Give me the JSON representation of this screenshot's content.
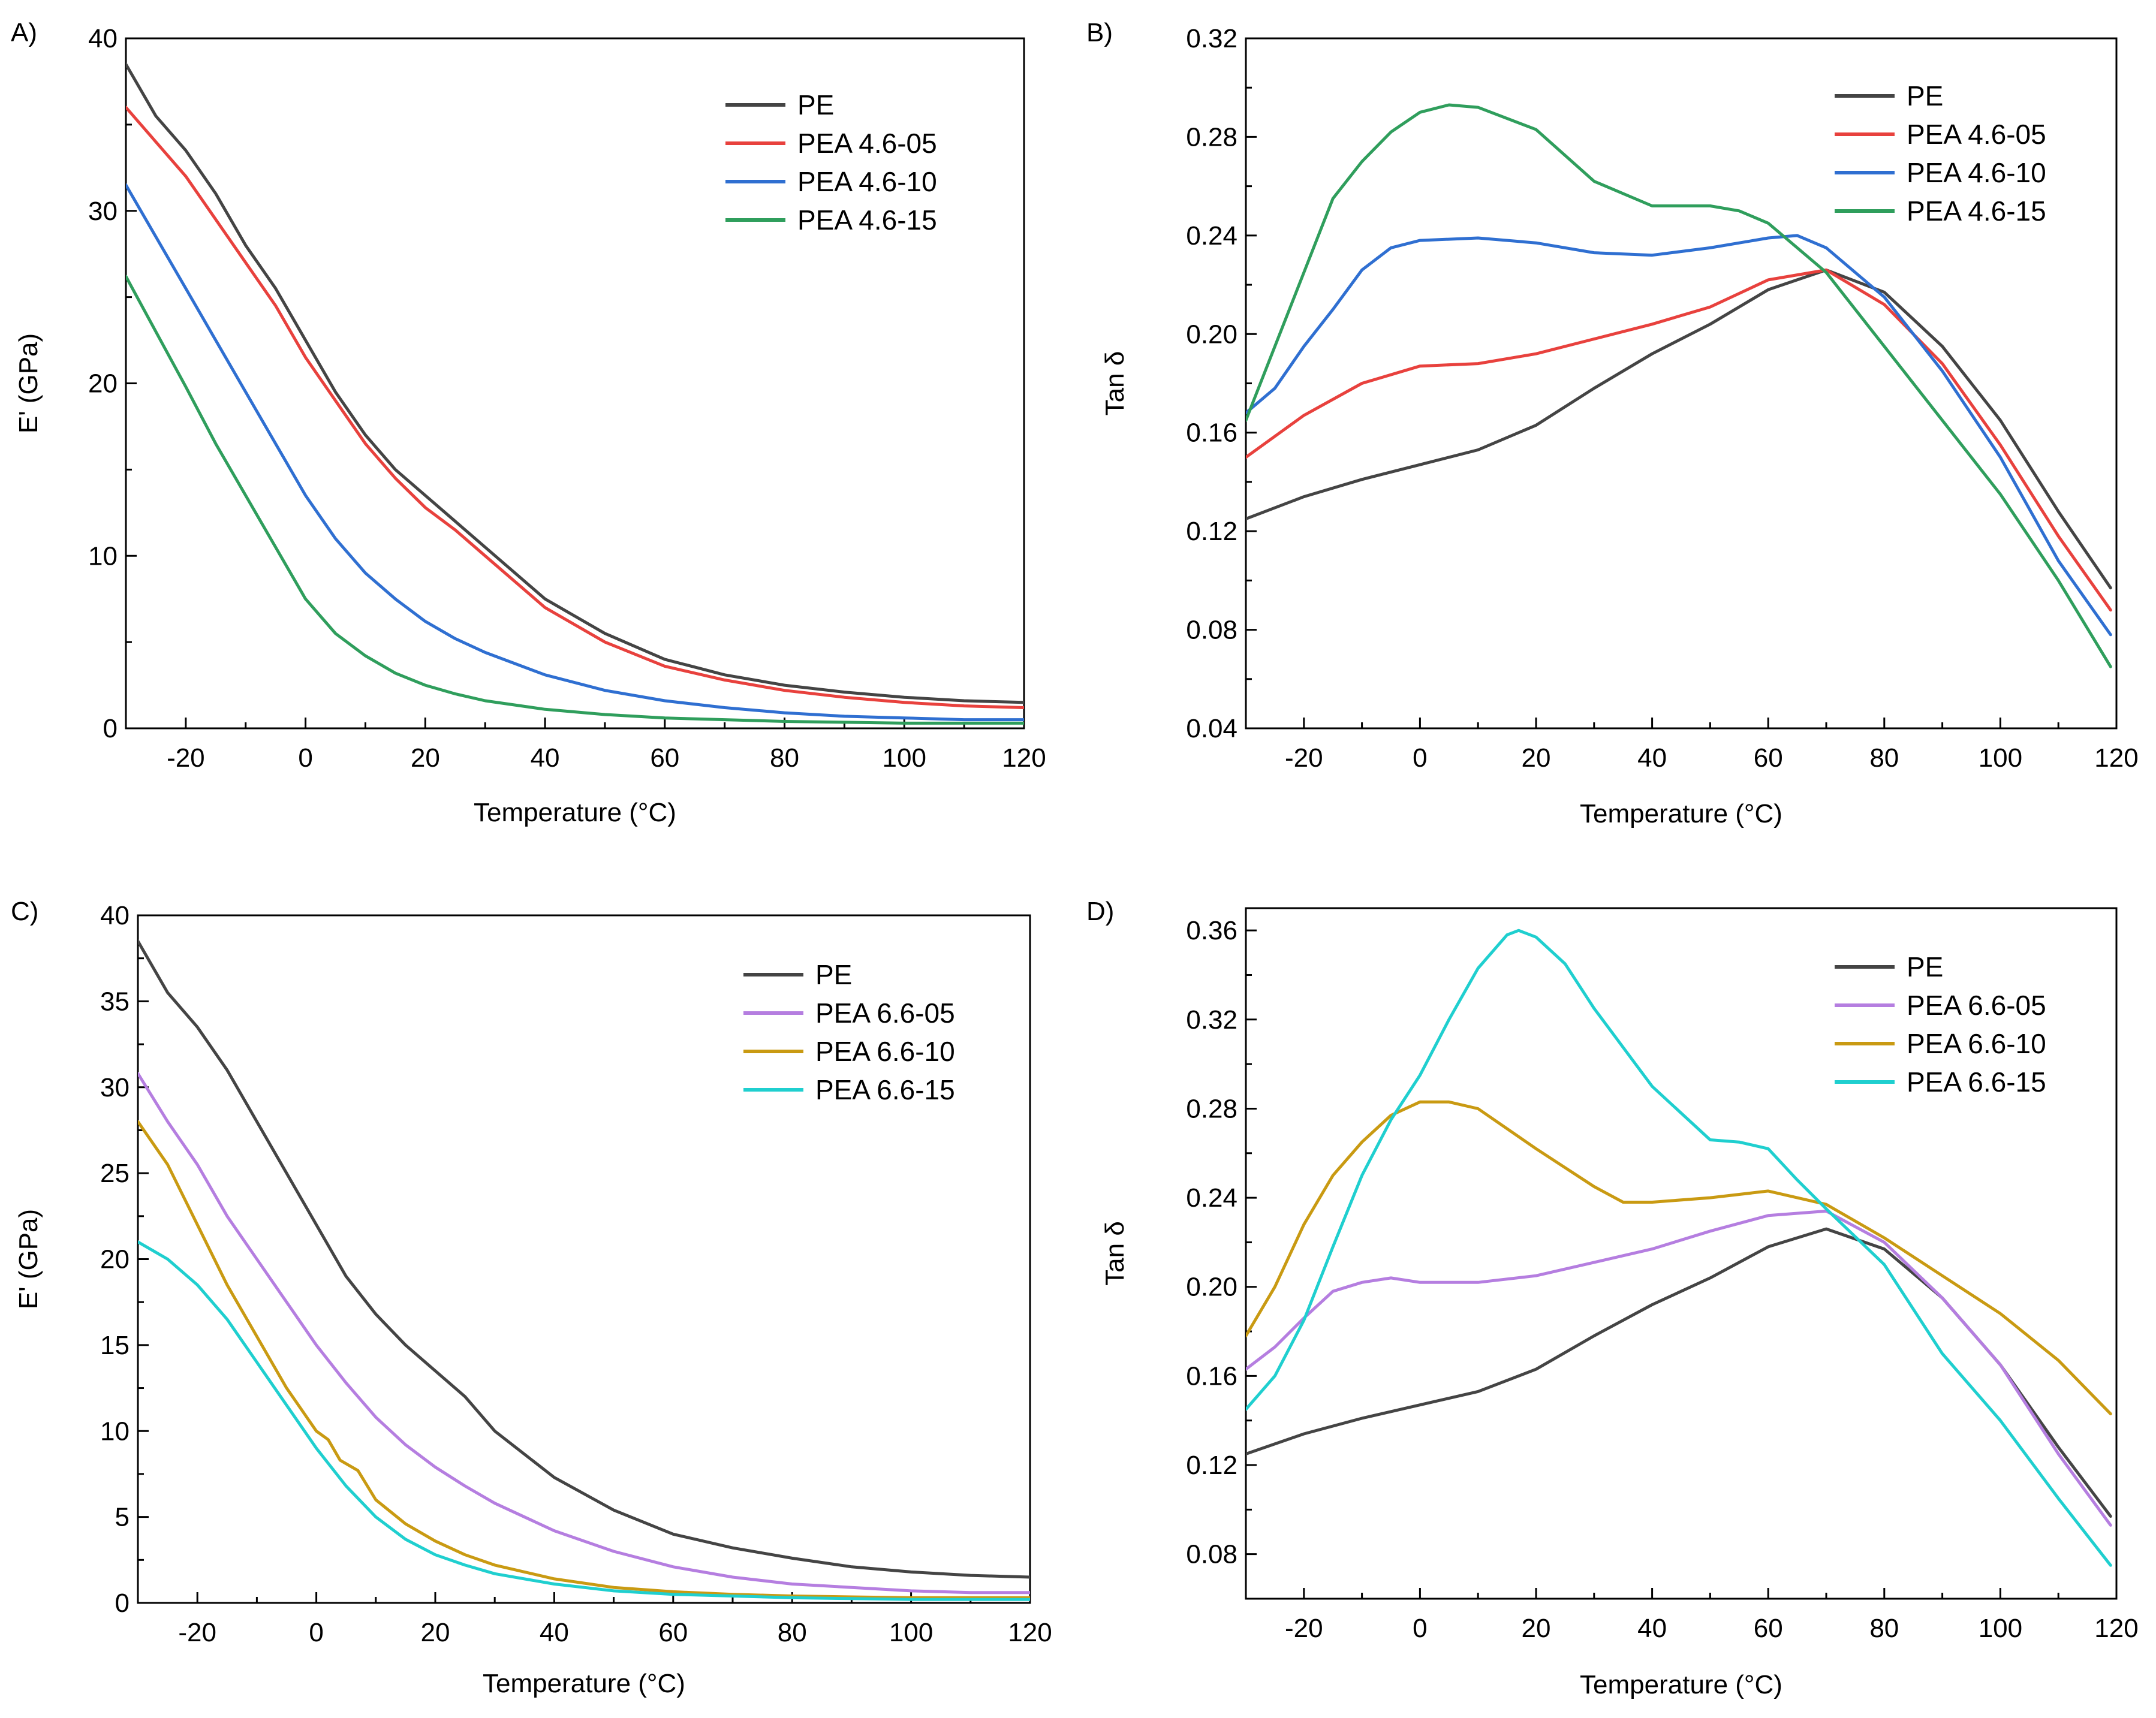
{
  "figure": {
    "panels": [
      "A)",
      "B)",
      "C)",
      "D)"
    ]
  },
  "colors": {
    "PE": "#444444",
    "PEA 4.6-05": "#e8413d",
    "PEA 4.6-10": "#2f6fd1",
    "PEA 4.6-15": "#2f9e5c",
    "PEA 6.6-05": "#b57ee0",
    "PEA 6.6-10": "#c99a12",
    "PEA 6.6-15": "#1fcfcf"
  },
  "chart_data": [
    {
      "panel": "A)",
      "type": "line",
      "xlabel": "Temperature (°C)",
      "ylabel": "E' (GPa)",
      "xlim": [
        -30,
        120
      ],
      "ylim": [
        0,
        40
      ],
      "xticks": [
        -20,
        0,
        20,
        40,
        60,
        80,
        100,
        120
      ],
      "xtick_labels": [
        "-20",
        "0",
        "20",
        "40",
        "60",
        "80",
        "100",
        "120"
      ],
      "yticks": [
        0,
        10,
        20,
        30,
        40
      ],
      "ytick_labels": [
        "0",
        "10",
        "20",
        "30",
        "40"
      ],
      "legend_position": "top-right",
      "series": [
        {
          "name": "PE",
          "x": [
            -30,
            -25,
            -20,
            -15,
            -10,
            -5,
            0,
            5,
            10,
            15,
            20,
            25,
            30,
            40,
            50,
            60,
            70,
            80,
            90,
            100,
            110,
            120
          ],
          "values": [
            38.5,
            35.5,
            33.5,
            31,
            28,
            25.5,
            22.5,
            19.5,
            17,
            15,
            13.5,
            12,
            10.5,
            7.5,
            5.5,
            4,
            3.1,
            2.5,
            2.1,
            1.8,
            1.6,
            1.5
          ]
        },
        {
          "name": "PEA 4.6-05",
          "x": [
            -30,
            -25,
            -20,
            -15,
            -10,
            -5,
            0,
            5,
            10,
            15,
            20,
            25,
            30,
            40,
            50,
            60,
            70,
            80,
            90,
            100,
            110,
            120
          ],
          "values": [
            36,
            34,
            32,
            29.5,
            27,
            24.5,
            21.5,
            19,
            16.5,
            14.5,
            12.8,
            11.5,
            10,
            7,
            5,
            3.6,
            2.8,
            2.2,
            1.8,
            1.5,
            1.3,
            1.2
          ]
        },
        {
          "name": "PEA 4.6-10",
          "x": [
            -30,
            -25,
            -20,
            -15,
            -10,
            -5,
            0,
            5,
            10,
            15,
            20,
            25,
            30,
            40,
            50,
            60,
            70,
            80,
            90,
            100,
            110,
            120
          ],
          "values": [
            31.5,
            28.5,
            25.5,
            22.5,
            19.5,
            16.5,
            13.5,
            11,
            9,
            7.5,
            6.2,
            5.2,
            4.4,
            3.1,
            2.2,
            1.6,
            1.2,
            0.9,
            0.7,
            0.6,
            0.5,
            0.5
          ]
        },
        {
          "name": "PEA 4.6-15",
          "x": [
            -30,
            -25,
            -20,
            -15,
            -10,
            -5,
            0,
            5,
            10,
            15,
            20,
            25,
            30,
            40,
            50,
            60,
            70,
            80,
            90,
            100,
            110,
            120
          ],
          "values": [
            26.2,
            23,
            19.8,
            16.5,
            13.5,
            10.5,
            7.5,
            5.5,
            4.2,
            3.2,
            2.5,
            2,
            1.6,
            1.1,
            0.8,
            0.6,
            0.5,
            0.4,
            0.35,
            0.3,
            0.3,
            0.3
          ]
        }
      ]
    },
    {
      "panel": "B)",
      "type": "line",
      "xlabel": "Temperature (°C)",
      "ylabel": "Tan δ",
      "xlim": [
        -30,
        120
      ],
      "ylim": [
        0.04,
        0.32
      ],
      "xticks": [
        -20,
        0,
        20,
        40,
        60,
        80,
        100,
        120
      ],
      "xtick_labels": [
        "-20",
        "0",
        "20",
        "40",
        "60",
        "80",
        "100",
        "120"
      ],
      "yticks": [
        0.04,
        0.08,
        0.12,
        0.16,
        0.2,
        0.24,
        0.28,
        0.32
      ],
      "ytick_labels": [
        "0.04",
        "0.08",
        "0.12",
        "0.16",
        "0.20",
        "0.24",
        "0.28",
        "0.32"
      ],
      "legend_position": "top-right",
      "series": [
        {
          "name": "PE",
          "x": [
            -30,
            -20,
            -10,
            0,
            10,
            20,
            30,
            40,
            50,
            60,
            70,
            80,
            90,
            100,
            110,
            119
          ],
          "values": [
            0.125,
            0.134,
            0.141,
            0.147,
            0.153,
            0.163,
            0.178,
            0.192,
            0.204,
            0.218,
            0.226,
            0.217,
            0.195,
            0.165,
            0.128,
            0.097
          ]
        },
        {
          "name": "PEA 4.6-05",
          "x": [
            -30,
            -20,
            -10,
            0,
            10,
            20,
            30,
            40,
            50,
            60,
            70,
            80,
            90,
            100,
            110,
            119
          ],
          "values": [
            0.15,
            0.167,
            0.18,
            0.187,
            0.188,
            0.192,
            0.198,
            0.204,
            0.211,
            0.222,
            0.226,
            0.212,
            0.188,
            0.155,
            0.118,
            0.088
          ]
        },
        {
          "name": "PEA 4.6-10",
          "x": [
            -30,
            -25,
            -20,
            -15,
            -10,
            -5,
            0,
            10,
            20,
            30,
            40,
            50,
            60,
            65,
            70,
            80,
            90,
            100,
            110,
            119
          ],
          "values": [
            0.168,
            0.178,
            0.195,
            0.21,
            0.226,
            0.235,
            0.238,
            0.239,
            0.237,
            0.233,
            0.232,
            0.235,
            0.239,
            0.24,
            0.235,
            0.215,
            0.185,
            0.15,
            0.108,
            0.078
          ]
        },
        {
          "name": "PEA 4.6-15",
          "x": [
            -30,
            -25,
            -20,
            -15,
            -10,
            -5,
            0,
            5,
            10,
            20,
            30,
            40,
            50,
            55,
            60,
            65,
            70,
            80,
            90,
            100,
            110,
            119
          ],
          "values": [
            0.165,
            0.195,
            0.225,
            0.255,
            0.27,
            0.282,
            0.29,
            0.293,
            0.292,
            0.283,
            0.262,
            0.252,
            0.252,
            0.25,
            0.245,
            0.235,
            0.225,
            0.195,
            0.165,
            0.135,
            0.1,
            0.065
          ]
        }
      ]
    },
    {
      "panel": "C)",
      "type": "line",
      "xlabel": "Temperature (°C)",
      "ylabel": "E' (GPa)",
      "xlim": [
        -30,
        120
      ],
      "ylim": [
        0,
        40
      ],
      "xticks": [
        -20,
        0,
        20,
        40,
        60,
        80,
        100,
        120
      ],
      "xtick_labels": [
        "-20",
        "0",
        "20",
        "40",
        "60",
        "80",
        "100",
        "120"
      ],
      "yticks": [
        0,
        5,
        10,
        15,
        20,
        25,
        30,
        35,
        40
      ],
      "ytick_labels": [
        "0",
        "5",
        "10",
        "15",
        "20",
        "25",
        "30",
        "35",
        "40"
      ],
      "legend_position": "top-right",
      "series": [
        {
          "name": "PE",
          "x": [
            -30,
            -25,
            -20,
            -15,
            -10,
            -5,
            0,
            5,
            10,
            15,
            20,
            25,
            30,
            40,
            50,
            60,
            70,
            80,
            90,
            100,
            110,
            120
          ],
          "values": [
            38.5,
            35.5,
            33.5,
            31,
            28,
            25,
            22,
            19,
            16.8,
            15,
            13.5,
            12,
            10,
            7.3,
            5.4,
            4,
            3.2,
            2.6,
            2.1,
            1.8,
            1.6,
            1.5
          ]
        },
        {
          "name": "PEA 6.6-05",
          "x": [
            -30,
            -25,
            -20,
            -15,
            -10,
            -5,
            0,
            5,
            10,
            15,
            20,
            25,
            30,
            40,
            50,
            60,
            70,
            80,
            90,
            100,
            110,
            120
          ],
          "values": [
            30.8,
            28,
            25.5,
            22.5,
            20,
            17.5,
            15,
            12.8,
            10.8,
            9.2,
            7.9,
            6.8,
            5.8,
            4.2,
            3,
            2.1,
            1.5,
            1.1,
            0.9,
            0.7,
            0.6,
            0.6
          ]
        },
        {
          "name": "PEA 6.6-10",
          "x": [
            -30,
            -25,
            -20,
            -15,
            -10,
            -5,
            0,
            2,
            4,
            7,
            10,
            15,
            20,
            25,
            30,
            40,
            50,
            60,
            70,
            80,
            90,
            100,
            110,
            120
          ],
          "values": [
            28,
            25.5,
            22,
            18.5,
            15.5,
            12.5,
            10,
            9.5,
            8.3,
            7.7,
            6,
            4.6,
            3.6,
            2.8,
            2.2,
            1.4,
            0.9,
            0.65,
            0.5,
            0.4,
            0.35,
            0.3,
            0.3,
            0.3
          ]
        },
        {
          "name": "PEA 6.6-15",
          "x": [
            -30,
            -25,
            -20,
            -15,
            -10,
            -5,
            0,
            5,
            10,
            15,
            20,
            25,
            30,
            40,
            50,
            60,
            70,
            80,
            90,
            100,
            110,
            120
          ],
          "values": [
            21,
            20,
            18.5,
            16.5,
            14,
            11.5,
            9,
            6.8,
            5,
            3.7,
            2.8,
            2.2,
            1.7,
            1.1,
            0.7,
            0.5,
            0.4,
            0.3,
            0.25,
            0.2,
            0.2,
            0.2
          ]
        }
      ]
    },
    {
      "panel": "D)",
      "type": "line",
      "xlabel": "Temperature (°C)",
      "ylabel": "Tan δ",
      "xlim": [
        -30,
        120
      ],
      "ylim": [
        0.06,
        0.37
      ],
      "xticks": [
        -20,
        0,
        20,
        40,
        60,
        80,
        100,
        120
      ],
      "xtick_labels": [
        "-20",
        "0",
        "20",
        "40",
        "60",
        "80",
        "100",
        "120"
      ],
      "yticks": [
        0.08,
        0.12,
        0.16,
        0.2,
        0.24,
        0.28,
        0.32,
        0.36
      ],
      "ytick_labels": [
        "0.08",
        "0.12",
        "0.16",
        "0.20",
        "0.24",
        "0.28",
        "0.32",
        "0.36"
      ],
      "legend_position": "top-right",
      "series": [
        {
          "name": "PE",
          "x": [
            -30,
            -20,
            -10,
            0,
            10,
            20,
            30,
            40,
            50,
            60,
            70,
            80,
            90,
            100,
            110,
            119
          ],
          "values": [
            0.125,
            0.134,
            0.141,
            0.147,
            0.153,
            0.163,
            0.178,
            0.192,
            0.204,
            0.218,
            0.226,
            0.217,
            0.195,
            0.165,
            0.128,
            0.097
          ]
        },
        {
          "name": "PEA 6.6-05",
          "x": [
            -30,
            -25,
            -20,
            -15,
            -10,
            -5,
            0,
            10,
            20,
            30,
            40,
            50,
            60,
            70,
            80,
            90,
            100,
            110,
            119
          ],
          "values": [
            0.163,
            0.173,
            0.186,
            0.198,
            0.202,
            0.204,
            0.202,
            0.202,
            0.205,
            0.211,
            0.217,
            0.225,
            0.232,
            0.234,
            0.22,
            0.195,
            0.165,
            0.125,
            0.093
          ]
        },
        {
          "name": "PEA 6.6-10",
          "x": [
            -30,
            -25,
            -20,
            -15,
            -10,
            -5,
            0,
            5,
            10,
            20,
            30,
            35,
            40,
            50,
            60,
            70,
            80,
            90,
            100,
            110,
            119
          ],
          "values": [
            0.178,
            0.2,
            0.228,
            0.25,
            0.265,
            0.277,
            0.283,
            0.283,
            0.28,
            0.262,
            0.245,
            0.238,
            0.238,
            0.24,
            0.243,
            0.237,
            0.222,
            0.205,
            0.188,
            0.167,
            0.143
          ]
        },
        {
          "name": "PEA 6.6-15",
          "x": [
            -30,
            -25,
            -20,
            -15,
            -10,
            -5,
            0,
            5,
            10,
            15,
            17,
            20,
            25,
            30,
            40,
            50,
            55,
            60,
            65,
            70,
            80,
            90,
            100,
            110,
            119
          ],
          "values": [
            0.145,
            0.16,
            0.185,
            0.218,
            0.25,
            0.275,
            0.295,
            0.32,
            0.343,
            0.358,
            0.36,
            0.357,
            0.345,
            0.325,
            0.29,
            0.266,
            0.265,
            0.262,
            0.248,
            0.235,
            0.21,
            0.17,
            0.14,
            0.105,
            0.075
          ]
        }
      ]
    }
  ]
}
